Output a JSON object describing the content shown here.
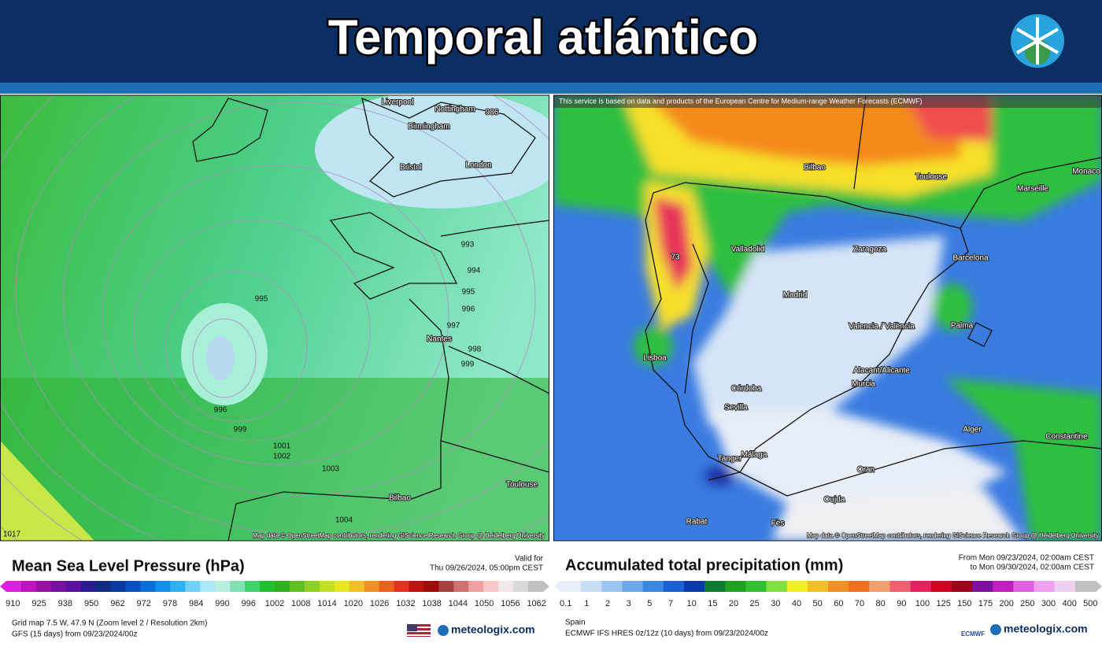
{
  "header": {
    "title": "Temporal atlántico"
  },
  "left_panel": {
    "title": "Mean Sea Level Pressure (hPa)",
    "valid_label": "Valid for",
    "valid_time": "Thu 09/26/2024, 05:00pm CEST",
    "map_labels": [
      "Liverpool",
      "Nottingham",
      "Birmingham",
      "Bristol",
      "London",
      "986",
      "993",
      "994",
      "995",
      "996",
      "997",
      "Nantes",
      "998",
      "999",
      "995",
      "996",
      "999",
      "1001",
      "1002",
      "1003",
      "Toulouse",
      "Bilbao",
      "1004",
      "1017"
    ],
    "attribution": "Map data © OpenStreetMap contributors, rendering GIScience Research Group @ Heidelberg University",
    "scale_labels": [
      "910",
      "925",
      "938",
      "950",
      "962",
      "972",
      "978",
      "984",
      "990",
      "996",
      "1002",
      "1008",
      "1014",
      "1020",
      "1026",
      "1032",
      "1038",
      "1044",
      "1050",
      "1056",
      "1062"
    ],
    "footer": [
      "Grid map 7.5 W, 47.9 N (Zoom level 2 / Resolution 2km)",
      "GFS (15 days) from 09/23/2024/00z"
    ],
    "brand": "meteologix.com"
  },
  "right_panel": {
    "title": "Accumulated total precipitation (mm)",
    "period_from": "From Mon 09/23/2024, 02:00am CEST",
    "period_to": "to Mon 09/30/2024, 02:00am CEST",
    "disclaimer": "This service is based on data and products of the European Centre for Medium-range Weather Forecasts (ECMWF)",
    "map_labels": [
      "73",
      "Bilbao",
      "Toulouse",
      "Marseille",
      "Monaco",
      "Valladolid",
      "Zaragoza",
      "Barcelona",
      "Madrid",
      "Valencia / València",
      "Palma",
      "Lisboa",
      "Alacant/Alicante",
      "Murcia",
      "Córdoba",
      "Sevilla",
      "Málaga",
      "Tanger",
      "Alger",
      "Constantine",
      "Oran",
      "Oujda",
      "Rabat",
      "Fès"
    ],
    "attribution": "Map data © OpenStreetMap contributors, rendering GIScience Research Group @ Heidelberg University",
    "scale_labels": [
      "0.1",
      "1",
      "2",
      "3",
      "5",
      "7",
      "10",
      "15",
      "20",
      "25",
      "30",
      "40",
      "50",
      "60",
      "70",
      "80",
      "90",
      "100",
      "125",
      "150",
      "175",
      "200",
      "250",
      "300",
      "400",
      "500"
    ],
    "footer": [
      "Spain",
      "ECMWF IFS HRES 0z/12z (10 days) from 09/23/2024/00z"
    ],
    "logo": "ECMWF",
    "brand": "meteologix.com"
  }
}
